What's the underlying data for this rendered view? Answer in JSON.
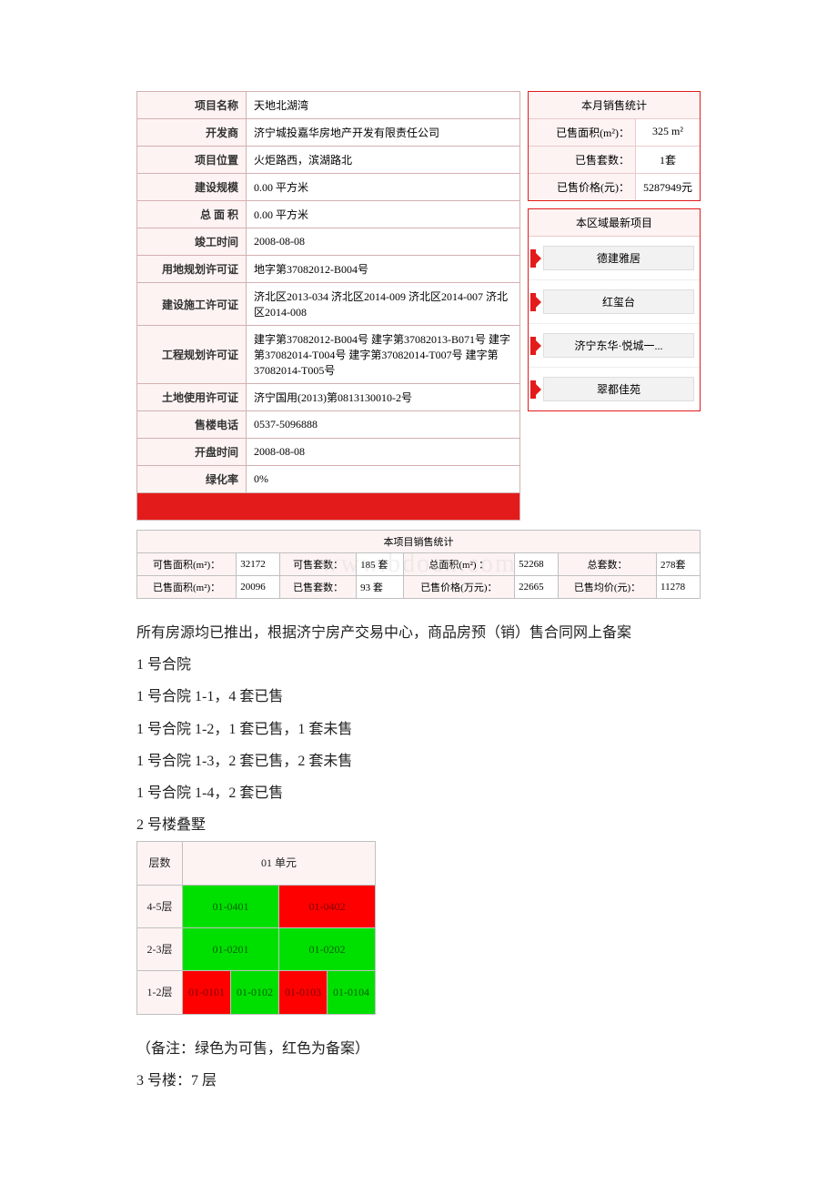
{
  "project_info": {
    "rows": [
      {
        "label": "项目名称",
        "value": "天地北湖湾"
      },
      {
        "label": "开发商",
        "value": "济宁城投嘉华房地产开发有限责任公司"
      },
      {
        "label": "项目位置",
        "value": "火炬路西，滨湖路北"
      },
      {
        "label": "建设规模",
        "value": "0.00 平方米"
      },
      {
        "label": "总 面 积",
        "value": "0.00 平方米"
      },
      {
        "label": "竣工时间",
        "value": "2008-08-08"
      },
      {
        "label": "用地规划许可证",
        "value": "地字第37082012-B004号"
      },
      {
        "label": "建设施工许可证",
        "value": "济北区2013-034 济北区2014-009 济北区2014-007 济北区2014-008"
      },
      {
        "label": "工程规划许可证",
        "value": "建字第37082012-B004号 建字第37082013-B071号 建字第37082014-T004号 建字第37082014-T007号 建字第37082014-T005号"
      },
      {
        "label": "土地使用许可证",
        "value": "济宁国用(2013)第0813130010-2号"
      },
      {
        "label": "售楼电话",
        "value": "0537-5096888"
      },
      {
        "label": "开盘时间",
        "value": "2008-08-08"
      },
      {
        "label": "绿化率",
        "value": "0%"
      }
    ]
  },
  "month_stats": {
    "title": "本月销售统计",
    "rows": [
      {
        "k": "已售面积(m²)：",
        "v": "325 m²"
      },
      {
        "k": "已售套数：",
        "v": "1套"
      },
      {
        "k": "已售价格(元)：",
        "v": "5287949元"
      }
    ]
  },
  "latest_projects": {
    "title": "本区域最新项目",
    "items": [
      "德建雅居",
      "红玺台",
      "济宁东华·悦城一...",
      "翠都佳苑"
    ]
  },
  "project_stats": {
    "title": "本项目销售统计",
    "row1": {
      "c1_label": "可售面积(m²)：",
      "c1_val": "32172",
      "c2_label": "可售套数：",
      "c2_val": "185 套",
      "c3_label": "总面积(m²) ：",
      "c3_val": "52268",
      "c4_label": "总套数：",
      "c4_val": "278套"
    },
    "row2": {
      "c1_label": "已售面积(m²)：",
      "c1_val": "20096",
      "c2_label": "已售套数：",
      "c2_val": "93 套",
      "c3_label": "已售价格(万元)：",
      "c3_val": "22665",
      "c4_label": "已售均价(元)：",
      "c4_val": "11278"
    }
  },
  "body": {
    "line1": "所有房源均已推出，根据济宁房产交易中心，商品房预（销）售合同网上备案",
    "line2": "1 号合院",
    "line3": "1 号合院 1-1，4 套已售",
    "line4": "1 号合院 1-2，1 套已售，1 套未售",
    "line5": "1 号合院 1-3，2 套已售，2 套未售",
    "line6": "1 号合院 1-4，2 套已售",
    "line7": "2 号楼叠墅",
    "note": "（备注：绿色为可售，红色为备案）",
    "line8": "3 号楼：7 层"
  },
  "unit_table": {
    "col_head_floor": "层数",
    "col_head_unit": "01 单元",
    "rows": [
      {
        "floor": "4-5层",
        "cells": [
          {
            "text": "01-0401",
            "status": "green",
            "span": 2
          },
          {
            "text": "01-0402",
            "status": "red",
            "span": 2
          }
        ]
      },
      {
        "floor": "2-3层",
        "cells": [
          {
            "text": "01-0201",
            "status": "green",
            "span": 2
          },
          {
            "text": "01-0202",
            "status": "green",
            "span": 2
          }
        ]
      },
      {
        "floor": "1-2层",
        "cells": [
          {
            "text": "01-0101",
            "status": "red",
            "span": 1
          },
          {
            "text": "01-0102",
            "status": "green",
            "span": 1
          },
          {
            "text": "01-0103",
            "status": "red",
            "span": 1
          },
          {
            "text": "01-0104",
            "status": "green",
            "span": 1
          }
        ]
      }
    ],
    "colors": {
      "green": "#00e000",
      "red": "#ff0000",
      "head_bg": "#fdf3f3"
    }
  },
  "watermark": "www.bdocx.com"
}
